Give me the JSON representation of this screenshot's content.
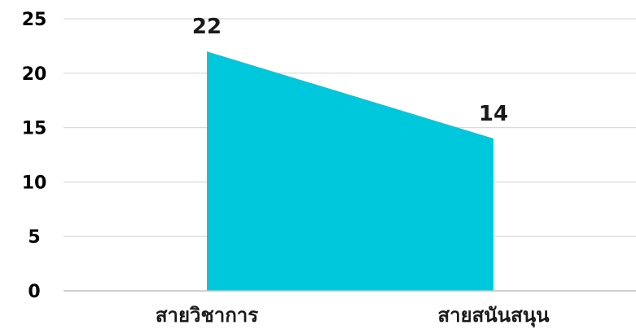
{
  "chart_data": {
    "type": "area",
    "categories": [
      "สายวิชาการ",
      "สายสนันสนุน"
    ],
    "values": [
      22,
      14
    ],
    "data_labels": [
      "22",
      "14"
    ],
    "yticks": [
      "0",
      "5",
      "10",
      "15",
      "20",
      "25"
    ],
    "ylim": [
      0,
      25
    ],
    "grid": true,
    "legend": "none",
    "colors": {
      "area": "#00c8dc",
      "grid": "#d9d9d9",
      "axis": "#bfbfbf",
      "text": "#000000"
    }
  }
}
